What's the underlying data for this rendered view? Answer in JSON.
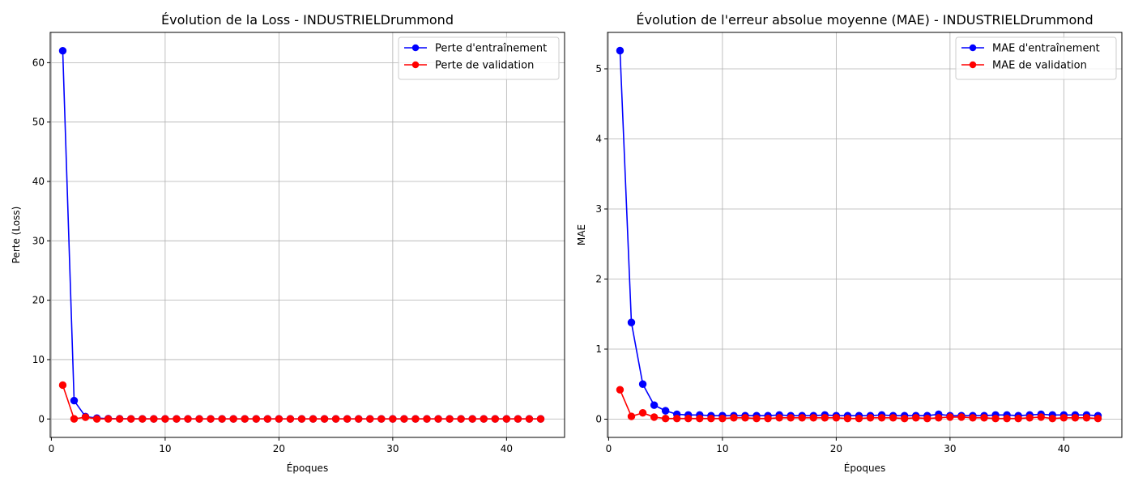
{
  "figure": {
    "background": "#ffffff"
  },
  "chart_data": [
    {
      "type": "line",
      "title": "Évolution de la Loss - INDUSTRIELDrummond",
      "xlabel": "Époques",
      "ylabel": "Perte (Loss)",
      "xlim": [
        -0.1,
        45.1
      ],
      "ylim": [
        -3.1,
        65.1
      ],
      "xticks": [
        0,
        10,
        20,
        30,
        40
      ],
      "yticks": [
        0,
        10,
        20,
        30,
        40,
        50,
        60
      ],
      "grid": true,
      "legend_position": "top-right",
      "x": [
        1,
        2,
        3,
        4,
        5,
        6,
        7,
        8,
        9,
        10,
        11,
        12,
        13,
        14,
        15,
        16,
        17,
        18,
        19,
        20,
        21,
        22,
        23,
        24,
        25,
        26,
        27,
        28,
        29,
        30,
        31,
        32,
        33,
        34,
        35,
        36,
        37,
        38,
        39,
        40,
        41,
        42,
        43
      ],
      "series": [
        {
          "name": "Perte d'entraînement",
          "color": "#0000ff",
          "marker": "circle",
          "values": [
            62.0,
            3.1,
            0.4,
            0.15,
            0.06,
            0.04,
            0.03,
            0.03,
            0.02,
            0.02,
            0.02,
            0.02,
            0.02,
            0.02,
            0.02,
            0.02,
            0.02,
            0.02,
            0.02,
            0.02,
            0.02,
            0.02,
            0.02,
            0.02,
            0.02,
            0.02,
            0.02,
            0.02,
            0.02,
            0.02,
            0.02,
            0.02,
            0.02,
            0.02,
            0.02,
            0.02,
            0.02,
            0.02,
            0.02,
            0.02,
            0.02,
            0.02,
            0.02
          ]
        },
        {
          "name": "Perte de validation",
          "color": "#ff0000",
          "marker": "circle",
          "values": [
            5.7,
            0.02,
            0.3,
            0.01,
            0.01,
            0.01,
            0.01,
            0.01,
            0.01,
            0.01,
            0.01,
            0.01,
            0.01,
            0.01,
            0.01,
            0.01,
            0.01,
            0.01,
            0.01,
            0.01,
            0.01,
            0.01,
            0.01,
            0.01,
            0.01,
            0.01,
            0.01,
            0.01,
            0.01,
            0.01,
            0.01,
            0.01,
            0.01,
            0.01,
            0.01,
            0.01,
            0.01,
            0.01,
            0.01,
            0.01,
            0.01,
            0.01,
            0.01
          ]
        }
      ]
    },
    {
      "type": "line",
      "title": "Évolution de l'erreur absolue moyenne (MAE) - INDUSTRIELDrummond",
      "xlabel": "Époques",
      "ylabel": "MAE",
      "xlim": [
        -0.1,
        45.1
      ],
      "ylim": [
        -0.26,
        5.52
      ],
      "xticks": [
        0,
        10,
        20,
        30,
        40
      ],
      "yticks": [
        0,
        1,
        2,
        3,
        4,
        5
      ],
      "grid": true,
      "legend_position": "top-right",
      "x": [
        1,
        2,
        3,
        4,
        5,
        6,
        7,
        8,
        9,
        10,
        11,
        12,
        13,
        14,
        15,
        16,
        17,
        18,
        19,
        20,
        21,
        22,
        23,
        24,
        25,
        26,
        27,
        28,
        29,
        30,
        31,
        32,
        33,
        34,
        35,
        36,
        37,
        38,
        39,
        40,
        41,
        42,
        43
      ],
      "series": [
        {
          "name": "MAE d'entraînement",
          "color": "#0000ff",
          "marker": "circle",
          "values": [
            5.26,
            1.38,
            0.5,
            0.2,
            0.12,
            0.07,
            0.06,
            0.06,
            0.05,
            0.05,
            0.05,
            0.05,
            0.05,
            0.05,
            0.06,
            0.05,
            0.05,
            0.05,
            0.06,
            0.05,
            0.05,
            0.05,
            0.05,
            0.06,
            0.05,
            0.05,
            0.05,
            0.05,
            0.07,
            0.05,
            0.05,
            0.05,
            0.05,
            0.06,
            0.06,
            0.05,
            0.06,
            0.07,
            0.06,
            0.06,
            0.06,
            0.06,
            0.05
          ]
        },
        {
          "name": "MAE de validation",
          "color": "#ff0000",
          "marker": "circle",
          "values": [
            0.42,
            0.04,
            0.09,
            0.03,
            0.01,
            0.01,
            0.01,
            0.01,
            0.01,
            0.01,
            0.02,
            0.02,
            0.01,
            0.01,
            0.02,
            0.02,
            0.02,
            0.02,
            0.02,
            0.02,
            0.01,
            0.01,
            0.02,
            0.02,
            0.02,
            0.01,
            0.02,
            0.01,
            0.02,
            0.03,
            0.03,
            0.02,
            0.02,
            0.01,
            0.01,
            0.01,
            0.02,
            0.03,
            0.01,
            0.02,
            0.02,
            0.02,
            0.01
          ]
        }
      ]
    }
  ]
}
